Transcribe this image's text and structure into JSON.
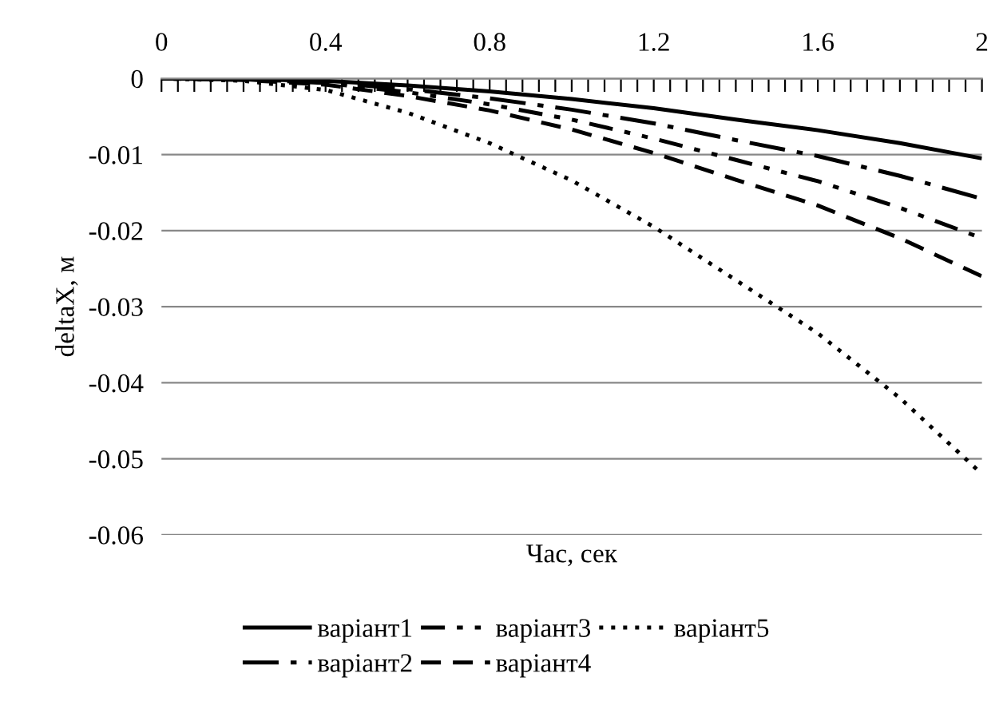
{
  "chart_data": {
    "type": "line",
    "xlabel": "Час, сек",
    "ylabel": "deltaX, м",
    "x": [
      0,
      0.2,
      0.4,
      0.6,
      0.8,
      1.0,
      1.2,
      1.4,
      1.6,
      1.8,
      2.0
    ],
    "series": [
      {
        "name": "варіант1",
        "color": "#000000",
        "line_style": "solid",
        "values": [
          0,
          -0.0001,
          -0.0003,
          -0.0009,
          -0.0017,
          -0.0027,
          -0.0039,
          -0.0054,
          -0.0068,
          -0.0085,
          -0.0105
        ]
      },
      {
        "name": "варіант2",
        "color": "#000000",
        "line_style": "longdashdot",
        "values": [
          0,
          -0.0001,
          -0.0005,
          -0.0014,
          -0.0026,
          -0.0041,
          -0.0059,
          -0.0081,
          -0.0102,
          -0.0128,
          -0.0158
        ]
      },
      {
        "name": "варіант3",
        "color": "#000000",
        "line_style": "dashdotdot",
        "values": [
          0,
          -0.0001,
          -0.0006,
          -0.0018,
          -0.0034,
          -0.0054,
          -0.0079,
          -0.0107,
          -0.0135,
          -0.017,
          -0.021
        ]
      },
      {
        "name": "варіант4",
        "color": "#000000",
        "line_style": "dashed",
        "values": [
          0,
          -0.0002,
          -0.0008,
          -0.0023,
          -0.0042,
          -0.0067,
          -0.0098,
          -0.0133,
          -0.0167,
          -0.021,
          -0.026
        ]
      },
      {
        "name": "варіант5",
        "color": "#000000",
        "line_style": "dotted",
        "values": [
          0,
          -0.0003,
          -0.0015,
          -0.0045,
          -0.0085,
          -0.0134,
          -0.0195,
          -0.0265,
          -0.0335,
          -0.042,
          -0.052
        ]
      }
    ],
    "xlim": [
      0,
      2
    ],
    "xticks": [
      0,
      {
        "value": 0.04,
        "label": null
      },
      {
        "value": 0.08,
        "label": null
      },
      {
        "value": 0.12,
        "label": null
      },
      {
        "value": 0.16,
        "label": null
      },
      {
        "value": 0.2,
        "label": null
      },
      {
        "value": 0.24,
        "label": null
      },
      {
        "value": 0.28,
        "label": null
      },
      {
        "value": 0.32,
        "label": null
      },
      {
        "value": 0.36,
        "label": null
      },
      0.4,
      {
        "value": 0.44,
        "label": null
      },
      {
        "value": 0.48,
        "label": null
      },
      {
        "value": 0.52,
        "label": null
      },
      {
        "value": 0.56,
        "label": null
      },
      {
        "value": 0.6,
        "label": null
      },
      {
        "value": 0.64,
        "label": null
      },
      {
        "value": 0.68,
        "label": null
      },
      {
        "value": 0.72,
        "label": null
      },
      {
        "value": 0.76,
        "label": null
      },
      0.8,
      {
        "value": 0.84,
        "label": null
      },
      {
        "value": 0.88,
        "label": null
      },
      {
        "value": 0.92,
        "label": null
      },
      {
        "value": 0.96,
        "label": null
      },
      {
        "value": 1.0,
        "label": null
      },
      {
        "value": 1.04,
        "label": null
      },
      {
        "value": 1.08,
        "label": null
      },
      {
        "value": 1.12,
        "label": null
      },
      {
        "value": 1.16,
        "label": null
      },
      1.2,
      {
        "value": 1.24,
        "label": null
      },
      {
        "value": 1.28,
        "label": null
      },
      {
        "value": 1.32,
        "label": null
      },
      {
        "value": 1.36,
        "label": null
      },
      {
        "value": 1.4,
        "label": null
      },
      {
        "value": 1.44,
        "label": null
      },
      {
        "value": 1.48,
        "label": null
      },
      {
        "value": 1.52,
        "label": null
      },
      {
        "value": 1.56,
        "label": null
      },
      1.6,
      {
        "value": 1.64,
        "label": null
      },
      {
        "value": 1.68,
        "label": null
      },
      {
        "value": 1.72,
        "label": null
      },
      {
        "value": 1.76,
        "label": null
      },
      {
        "value": 1.8,
        "label": null
      },
      {
        "value": 1.84,
        "label": null
      },
      {
        "value": 1.88,
        "label": null
      },
      {
        "value": 1.92,
        "label": null
      },
      {
        "value": 1.96,
        "label": null
      },
      2
    ],
    "ylim": [
      -0.06,
      0
    ],
    "yticks": [
      0,
      -0.01,
      -0.02,
      -0.03,
      -0.04,
      -0.05,
      -0.06
    ],
    "grid": "y",
    "legend": "bottom",
    "marker": "none"
  }
}
